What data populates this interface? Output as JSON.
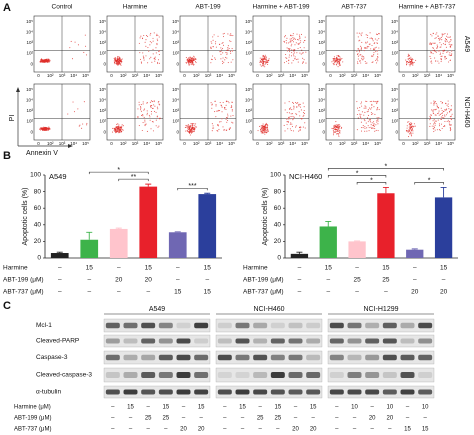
{
  "panel_labels": [
    "A",
    "B",
    "C"
  ],
  "panel_a": {
    "columns": [
      "Control",
      "Harmine",
      "ABT-199",
      "Harmine + ABT-199",
      "ABT-737",
      "Harmine + ABT-737"
    ],
    "rows": [
      "A549",
      "NCI-H460"
    ],
    "y_label": "PI",
    "x_label": "Annexin V",
    "yticks": [
      "10⁵",
      "10⁴",
      "10³",
      "10²",
      "0"
    ],
    "xticks": [
      "0",
      "10²",
      "10³",
      "10⁴",
      "10⁵"
    ]
  },
  "chart_data": [
    {
      "type": "bar",
      "title": "A549",
      "y_label": "Apoptotic cells (%)",
      "values": [
        6,
        22,
        35,
        86,
        31,
        77
      ],
      "errors": [
        1,
        9,
        1,
        3,
        0.5,
        1
      ],
      "colors": [
        "#222222",
        "#3db34a",
        "#ffc4cc",
        "#e8212b",
        "#6f67b3",
        "#2b3f9c"
      ],
      "ylim": [
        0,
        100
      ],
      "yticks": [
        0,
        20,
        40,
        60,
        80,
        100
      ],
      "annotations": [
        {
          "text": "**",
          "bars": [
            2,
            3
          ]
        },
        {
          "text": "***",
          "bars": [
            4,
            5
          ]
        },
        {
          "text": "*",
          "bars": [
            1,
            3
          ]
        }
      ],
      "treatments": [
        {
          "name": "Harmine",
          "doses": [
            "–",
            "15",
            "–",
            "15",
            "–",
            "15"
          ]
        },
        {
          "name": "ABT-199 (μM)",
          "doses": [
            "–",
            "–",
            "20",
            "20",
            "–",
            "–"
          ]
        },
        {
          "name": "ABT-737 (μM)",
          "doses": [
            "–",
            "–",
            "–",
            "–",
            "15",
            "15"
          ]
        }
      ]
    },
    {
      "type": "bar",
      "title": "NCI-H460",
      "y_label": "Apoptotic cells (%)",
      "values": [
        5,
        38,
        20,
        78,
        10,
        73
      ],
      "errors": [
        2,
        6,
        0.5,
        7,
        1,
        12
      ],
      "colors": [
        "#222222",
        "#3db34a",
        "#ffc4cc",
        "#e8212b",
        "#6f67b3",
        "#2b3f9c"
      ],
      "ylim": [
        0,
        100
      ],
      "yticks": [
        0,
        20,
        40,
        60,
        80,
        100
      ],
      "annotations": [
        {
          "text": "*",
          "bars": [
            2,
            3
          ]
        },
        {
          "text": "*",
          "bars": [
            4,
            5
          ]
        },
        {
          "text": "*",
          "bars": [
            1,
            3
          ]
        },
        {
          "text": "*",
          "bars": [
            1,
            5
          ]
        }
      ],
      "treatments": [
        {
          "name": "Harmine",
          "doses": [
            "–",
            "15",
            "–",
            "15",
            "–",
            "15"
          ]
        },
        {
          "name": "ABT-199 (μM)",
          "doses": [
            "–",
            "–",
            "25",
            "25",
            "–",
            "–"
          ]
        },
        {
          "name": "ABT-737 (μM)",
          "doses": [
            "–",
            "–",
            "–",
            "–",
            "20",
            "20"
          ]
        }
      ]
    }
  ],
  "panel_c": {
    "proteins": [
      "Mcl-1",
      "Cleaved-PARP",
      "Caspase-3",
      "Cleaved-caspase-3",
      "α-tubulin"
    ],
    "treatment_names": [
      "Harmine (μM)",
      "ABT-199 (μM)",
      "ABT-737 (μM)"
    ],
    "cell_lines": [
      {
        "name": "A549",
        "doses": [
          [
            "–",
            "15",
            "–",
            "15",
            "–",
            "15"
          ],
          [
            "–",
            "–",
            "25",
            "25",
            "–",
            "–"
          ],
          [
            "–",
            "–",
            "–",
            "–",
            "20",
            "20"
          ]
        ]
      },
      {
        "name": "NCI-H460",
        "doses": [
          [
            "–",
            "15",
            "–",
            "15",
            "–",
            "15"
          ],
          [
            "–",
            "–",
            "25",
            "25",
            "–",
            "–"
          ],
          [
            "–",
            "–",
            "–",
            "–",
            "20",
            "20"
          ]
        ]
      },
      {
        "name": "NCI-H1299",
        "doses": [
          [
            "–",
            "10",
            "–",
            "10",
            "–",
            "10"
          ],
          [
            "–",
            "–",
            "20",
            "20",
            "–",
            "–"
          ],
          [
            "–",
            "–",
            "–",
            "–",
            "15",
            "15"
          ]
        ]
      }
    ]
  }
}
